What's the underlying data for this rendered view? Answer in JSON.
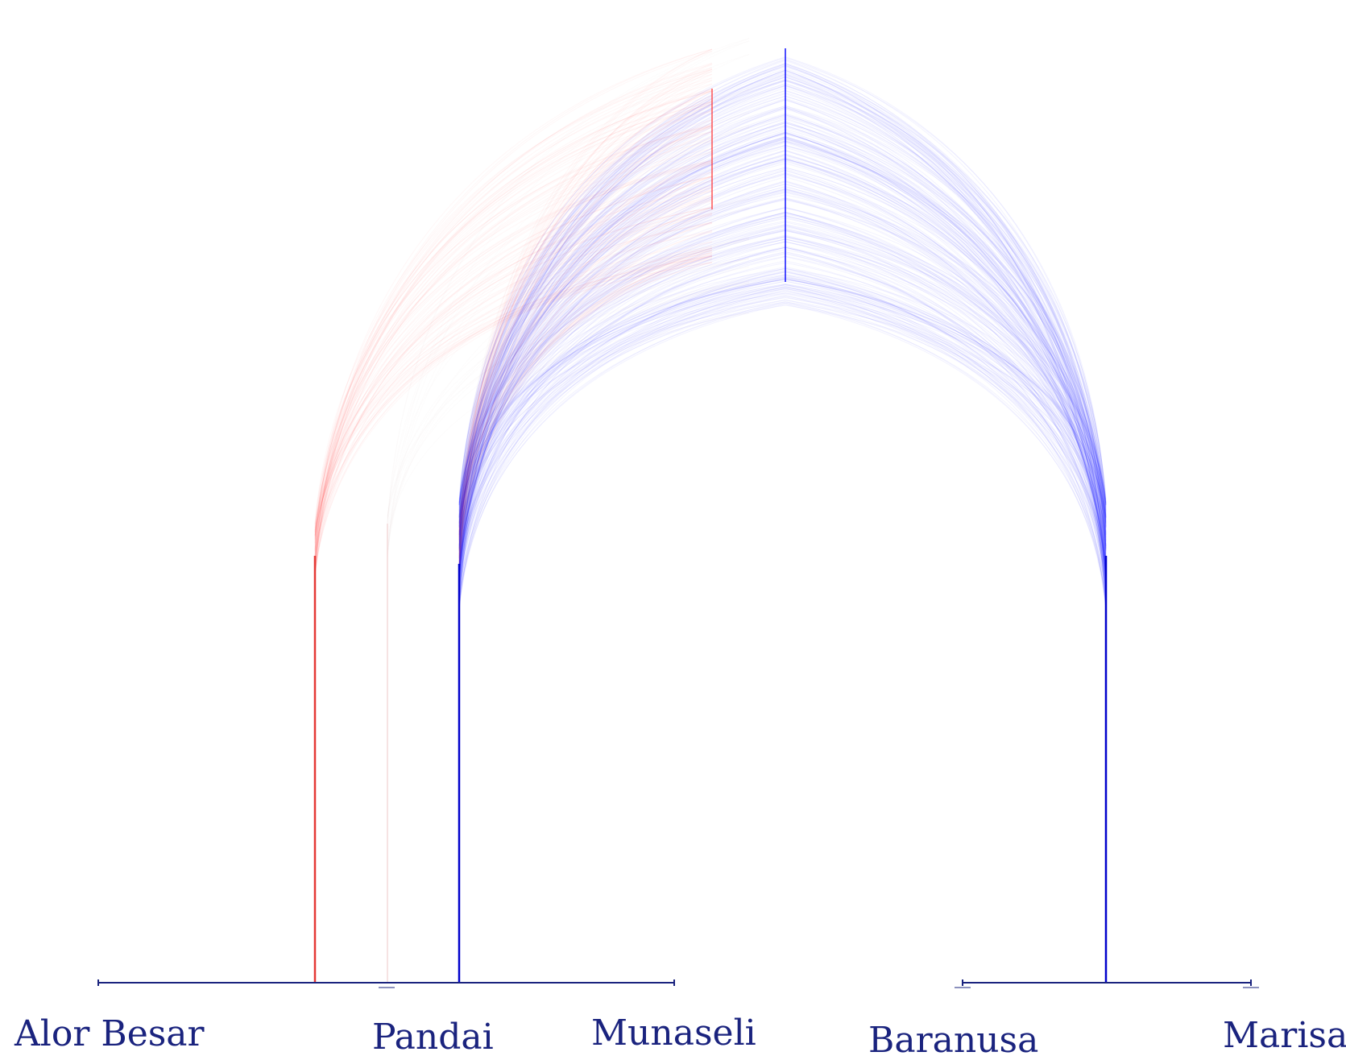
{
  "tree": {
    "taxa": [
      {
        "name": "Alor Besar",
        "clade": "Munaseli"
      },
      {
        "name": "Pandai",
        "clade": "Munaseli"
      },
      {
        "name": "Munaseli",
        "clade": "Munaseli"
      },
      {
        "name": "Baranusa",
        "clade": "Marisa"
      },
      {
        "name": "Marisa",
        "clade": "Marisa"
      }
    ],
    "colors": {
      "primary": "#0000ff",
      "secondary": "#ff2a2a",
      "label": "#1a237e",
      "baseline": "#1a237e"
    }
  }
}
